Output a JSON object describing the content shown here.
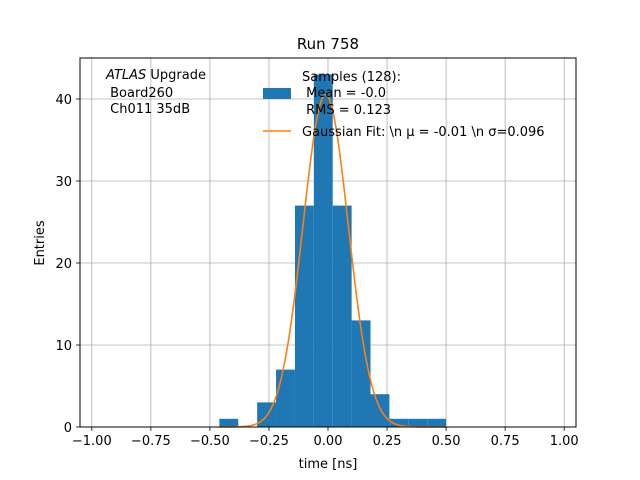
{
  "chart_data": {
    "type": "bar",
    "title": "Run 758",
    "xlabel": "time [ns]",
    "ylabel": "Entries",
    "xlim": [
      -1.05,
      1.05
    ],
    "ylim": [
      0,
      45
    ],
    "grid": true,
    "legend_placement": "top-right",
    "x_ticks": [
      "−1.00",
      "−0.75",
      "−0.50",
      "−0.25",
      "0.00",
      "0.25",
      "0.50",
      "0.75",
      "1.00"
    ],
    "x_tick_values": [
      -1.0,
      -0.75,
      -0.5,
      -0.25,
      0.0,
      0.25,
      0.5,
      0.75,
      1.0
    ],
    "y_ticks": [
      "0",
      "10",
      "20",
      "30",
      "40"
    ],
    "y_tick_values": [
      0,
      10,
      20,
      30,
      40
    ],
    "annotation": {
      "italic": "ATLAS",
      "line1_rest": " Upgrade",
      "line2": " Board260",
      "line3": " Ch011 35dB"
    },
    "histogram": {
      "name_lines": [
        "Samples (128):",
        " Mean = -0.0",
        " RMS = 0.123"
      ],
      "color": "#1f77b4",
      "bin_edges": [
        -0.46,
        -0.38,
        -0.3,
        -0.22,
        -0.14,
        -0.06,
        0.02,
        0.1,
        0.18,
        0.26,
        0.34,
        0.42,
        0.5
      ],
      "counts": [
        1,
        0,
        3,
        7,
        27,
        43,
        27,
        13,
        4,
        1,
        1,
        1
      ]
    },
    "fit": {
      "name": "Gaussian Fit: \\n μ = -0.01 \\n σ=0.096",
      "color": "#ff7f0e",
      "mu": -0.01,
      "sigma": 0.096,
      "amplitude": 40.5,
      "x_range": [
        -0.46,
        0.5
      ]
    }
  }
}
